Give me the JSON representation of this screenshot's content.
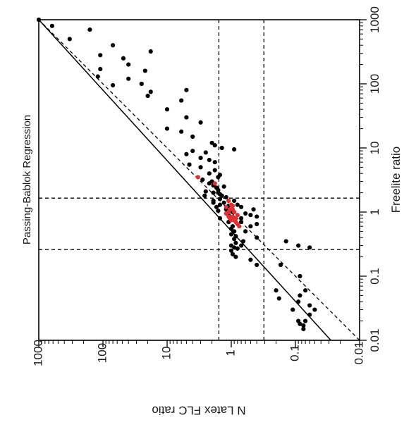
{
  "chart_data": {
    "type": "scatter",
    "title": "Passing-Bablok Regression",
    "xlabel": "Freelite ratio",
    "ylabel": "N Latex FLC ratio",
    "xscale": "log",
    "yscale": "log",
    "xlim": [
      0.01,
      1000
    ],
    "ylim": [
      0.01,
      1000
    ],
    "orientation": "figure rotated 90° clockwise; y-axis label printed upside down",
    "x_ticks": [
      "0.01",
      "0.1",
      "1",
      "10",
      "100",
      "1000"
    ],
    "y_ticks": [
      "1000",
      "100",
      "10",
      "1",
      "0.1",
      "0.01"
    ],
    "reference_lines": {
      "identity_line": {
        "style": "dashed",
        "from": [
          0.01,
          0.01
        ],
        "to": [
          1000,
          1000
        ]
      },
      "regression_line": {
        "style": "solid",
        "from": [
          0.01,
          0.028
        ],
        "to": [
          1000,
          1000
        ]
      },
      "x_cutoffs": [
        0.26,
        1.65
      ],
      "y_cutoffs": [
        0.31,
        1.56
      ]
    },
    "series": [
      {
        "color": "#000000",
        "points": [
          [
            1000,
            1000
          ],
          [
            800,
            620
          ],
          [
            700,
            160
          ],
          [
            500,
            330
          ],
          [
            400,
            70
          ],
          [
            320,
            18
          ],
          [
            280,
            110
          ],
          [
            250,
            48
          ],
          [
            200,
            40
          ],
          [
            170,
            110
          ],
          [
            160,
            22
          ],
          [
            130,
            120
          ],
          [
            120,
            40
          ],
          [
            100,
            25
          ],
          [
            95,
            70
          ],
          [
            80,
            5
          ],
          [
            75,
            18
          ],
          [
            65,
            20
          ],
          [
            55,
            6
          ],
          [
            40,
            10
          ],
          [
            30,
            5
          ],
          [
            25,
            3
          ],
          [
            20,
            10
          ],
          [
            18,
            6
          ],
          [
            15,
            4
          ],
          [
            12,
            2
          ],
          [
            11,
            1.8
          ],
          [
            10,
            1.4
          ],
          [
            9.5,
            0.9
          ],
          [
            9,
            4
          ],
          [
            8.5,
            2.5
          ],
          [
            8,
            5
          ],
          [
            7,
            3
          ],
          [
            6.5,
            2.2
          ],
          [
            6,
            1.8
          ],
          [
            5.5,
            4.5
          ],
          [
            5,
            3
          ],
          [
            4.5,
            1.8
          ],
          [
            4,
            2.2
          ],
          [
            3.8,
            1.5
          ],
          [
            3.5,
            1.6
          ],
          [
            3.2,
            2.8
          ],
          [
            3,
            2
          ],
          [
            2.8,
            2.2
          ],
          [
            2.6,
            1.9
          ],
          [
            2.5,
            1.3
          ],
          [
            2.4,
            1.7
          ],
          [
            2.2,
            1.6
          ],
          [
            2.1,
            2.5
          ],
          [
            2,
            1.6
          ],
          [
            2,
            1.9
          ],
          [
            1.9,
            1.5
          ],
          [
            1.8,
            1.4
          ],
          [
            1.8,
            2.6
          ],
          [
            1.7,
            1.2
          ],
          [
            1.6,
            1.5
          ],
          [
            1.5,
            1.9
          ],
          [
            1.5,
            0.9
          ],
          [
            1.4,
            1.3
          ],
          [
            1.4,
            1.9
          ],
          [
            1.3,
            0.8
          ],
          [
            1.3,
            1.5
          ],
          [
            1.25,
            1.1
          ],
          [
            1.2,
            1.7
          ],
          [
            1.2,
            0.7
          ],
          [
            1.1,
            1.2
          ],
          [
            1.1,
            0.45
          ],
          [
            1.05,
            1.6
          ],
          [
            1.0,
            0.95
          ],
          [
            0.95,
            0.6
          ],
          [
            0.9,
            1.1
          ],
          [
            0.9,
            0.5
          ],
          [
            0.85,
            0.4
          ],
          [
            0.8,
            0.7
          ],
          [
            0.8,
            1.5
          ],
          [
            0.75,
            0.9
          ],
          [
            0.7,
            0.7
          ],
          [
            0.7,
            1.1
          ],
          [
            0.65,
            0.4
          ],
          [
            0.6,
            0.5
          ],
          [
            0.6,
            0.95
          ],
          [
            0.55,
            1.0
          ],
          [
            0.5,
            0.6
          ],
          [
            0.5,
            0.9
          ],
          [
            0.45,
            1.0
          ],
          [
            0.42,
            0.85
          ],
          [
            0.4,
            0.4
          ],
          [
            0.38,
            0.9
          ],
          [
            0.35,
            0.65
          ],
          [
            0.33,
            0.85
          ],
          [
            0.3,
            0.7
          ],
          [
            0.3,
            1.0
          ],
          [
            0.28,
            0.9
          ],
          [
            0.27,
            0.8
          ],
          [
            0.25,
            1.0
          ],
          [
            0.22,
            0.95
          ],
          [
            0.2,
            0.85
          ],
          [
            0.18,
            0.5
          ],
          [
            0.15,
            0.4
          ],
          [
            0.3,
            0.09
          ],
          [
            0.28,
            0.06
          ],
          [
            0.35,
            0.14
          ],
          [
            0.15,
            0.17
          ],
          [
            0.1,
            0.085
          ],
          [
            0.06,
            0.2
          ],
          [
            0.06,
            0.07
          ],
          [
            0.05,
            0.085
          ],
          [
            0.045,
            0.18
          ],
          [
            0.04,
            0.09
          ],
          [
            0.035,
            0.06
          ],
          [
            0.03,
            0.05
          ],
          [
            0.03,
            0.11
          ],
          [
            0.025,
            0.06
          ],
          [
            0.02,
            0.07
          ],
          [
            0.018,
            0.085
          ],
          [
            0.017,
            0.075
          ],
          [
            0.02,
            0.09
          ],
          [
            0.015,
            0.075
          ]
        ]
      },
      {
        "color": "#e03030",
        "points": [
          [
            3.5,
            3.3
          ],
          [
            2.8,
            1.8
          ],
          [
            1.5,
            1.1
          ],
          [
            1.3,
            1.0
          ],
          [
            1.25,
            0.95
          ],
          [
            1.2,
            1.2
          ],
          [
            1.1,
            1.05
          ],
          [
            1.1,
            0.95
          ],
          [
            1.0,
            1.1
          ],
          [
            1.0,
            0.9
          ],
          [
            0.95,
            1.2
          ],
          [
            0.9,
            0.8
          ],
          [
            0.85,
            0.95
          ],
          [
            0.85,
            1.1
          ],
          [
            0.8,
            0.85
          ],
          [
            0.8,
            1.05
          ],
          [
            0.75,
            1.0
          ],
          [
            0.75,
            0.9
          ],
          [
            0.7,
            0.85
          ],
          [
            0.65,
            0.8
          ],
          [
            0.6,
            0.75
          ]
        ]
      }
    ]
  }
}
